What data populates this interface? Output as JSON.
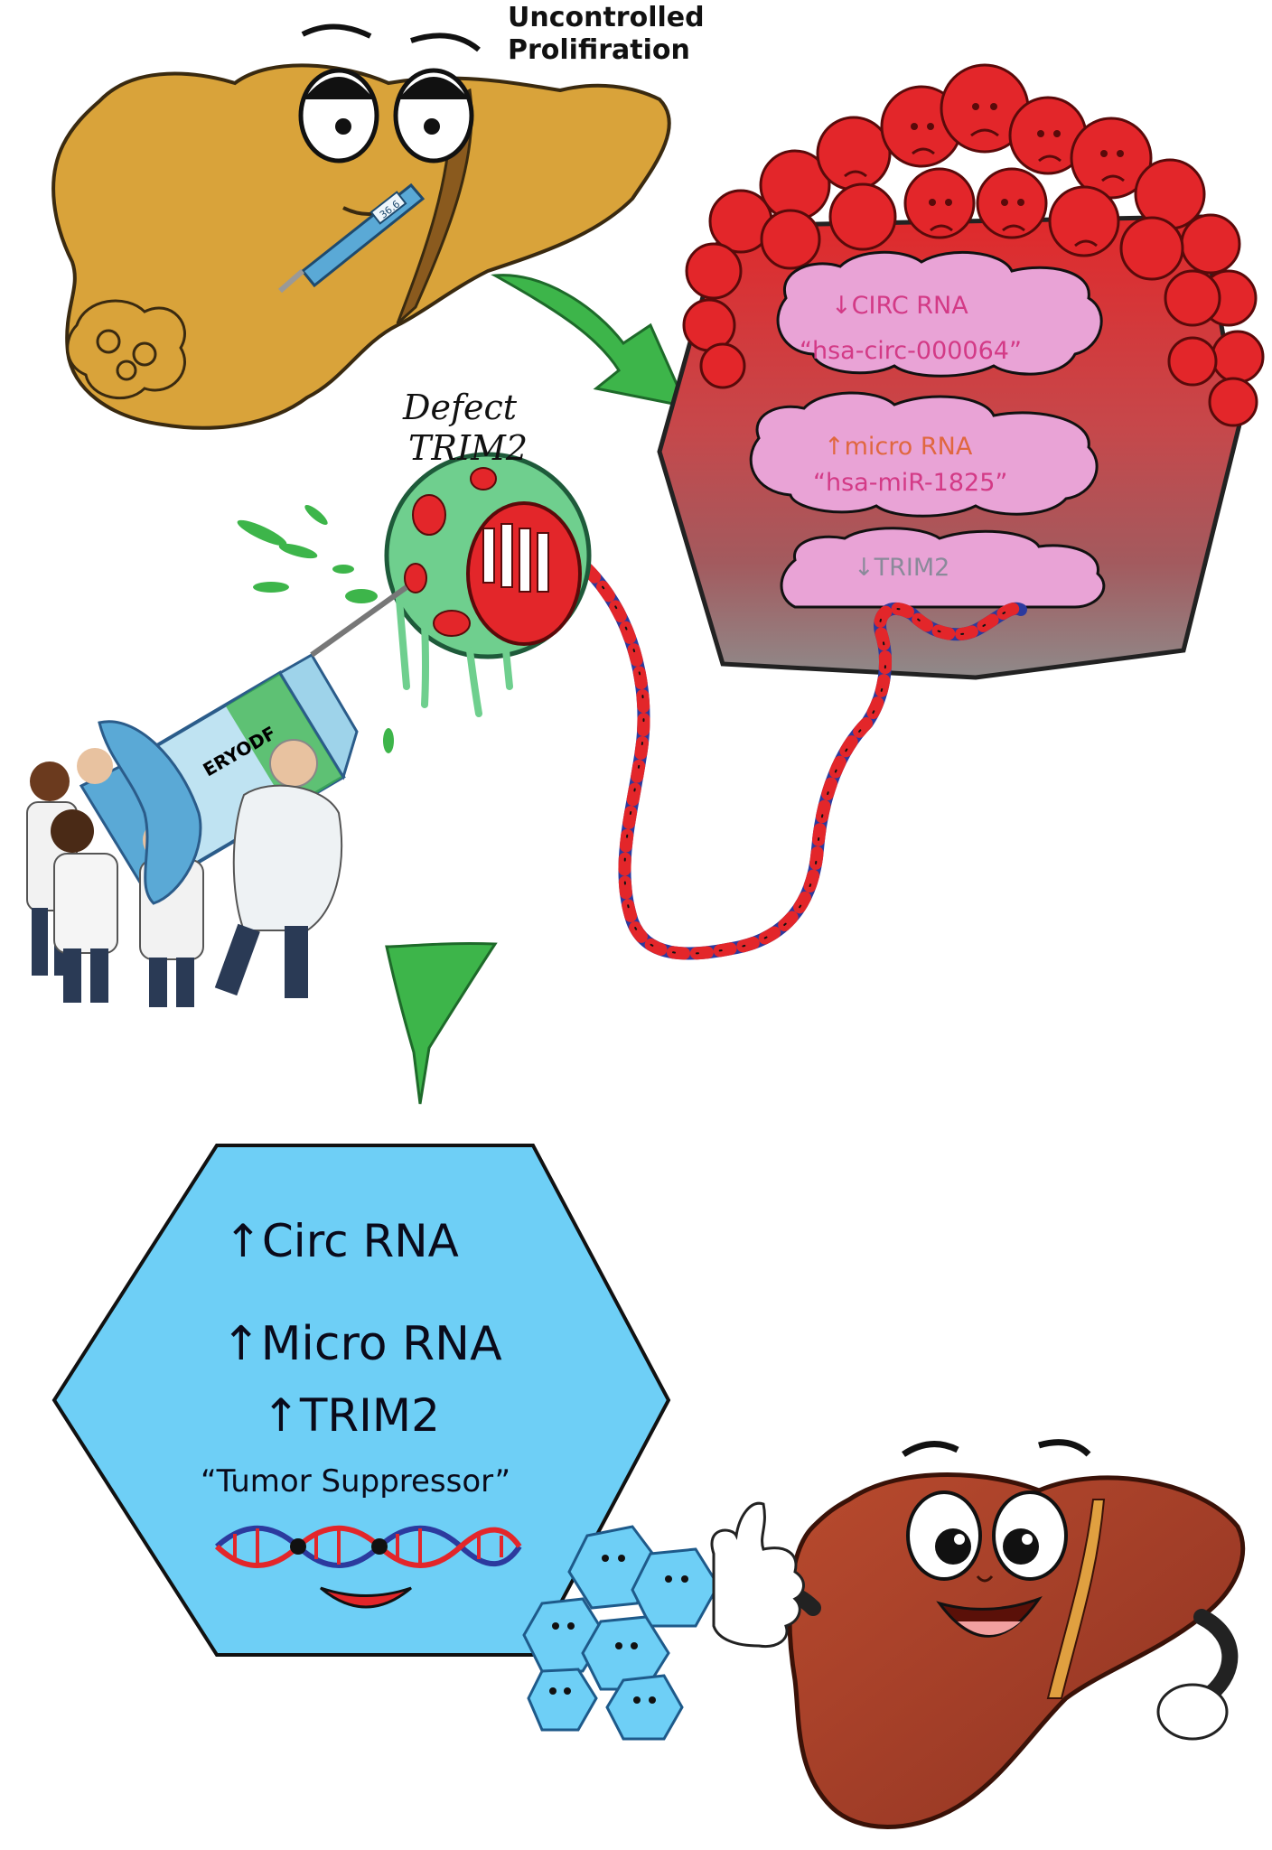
{
  "labels": {
    "uncontrolled_line1": "Uncontrolled",
    "uncontrolled_line2": "Prolifiration",
    "thermometer_reading": "36.6",
    "defect_line1": "Defect",
    "defect_line2": "TRIM2",
    "syringe_text": "ERYODF"
  },
  "tumor_clouds": [
    {
      "line1": "↓CIRC RNA",
      "line2": "“hsa-circ-000064”"
    },
    {
      "line1": "↑micro RNA",
      "line2": "“hsa-miR-1825”"
    },
    {
      "line1": "↓TRIM2"
    }
  ],
  "healthy_hexagon": {
    "lines": [
      "↑Circ RNA",
      "↑Micro RNA",
      "↑TRIM2"
    ],
    "caption": "“Tumor Suppressor”"
  },
  "colors": {
    "diseased_liver": "#d9a33a",
    "tumor_red": "#e0292b",
    "tumor_gray": "#8f8a8a",
    "cloud_pink": "#e9a3d6",
    "arrow_green": "#3db54a",
    "hexagon_blue": "#6ecff6",
    "healthy_liver": "#a4402a",
    "dna_red": "#e3262a",
    "dna_blue": "#2c3a9e",
    "defect_cell_green": "#6fcf8e"
  },
  "icons": [
    "diseased-liver-icon",
    "thermometer-icon",
    "tumor-icon",
    "defective-cell-icon",
    "syringe-icon",
    "scientists-icon",
    "dna-strand-icon",
    "healthy-liver-icon",
    "thumbs-up-icon",
    "blue-cells-icon"
  ]
}
